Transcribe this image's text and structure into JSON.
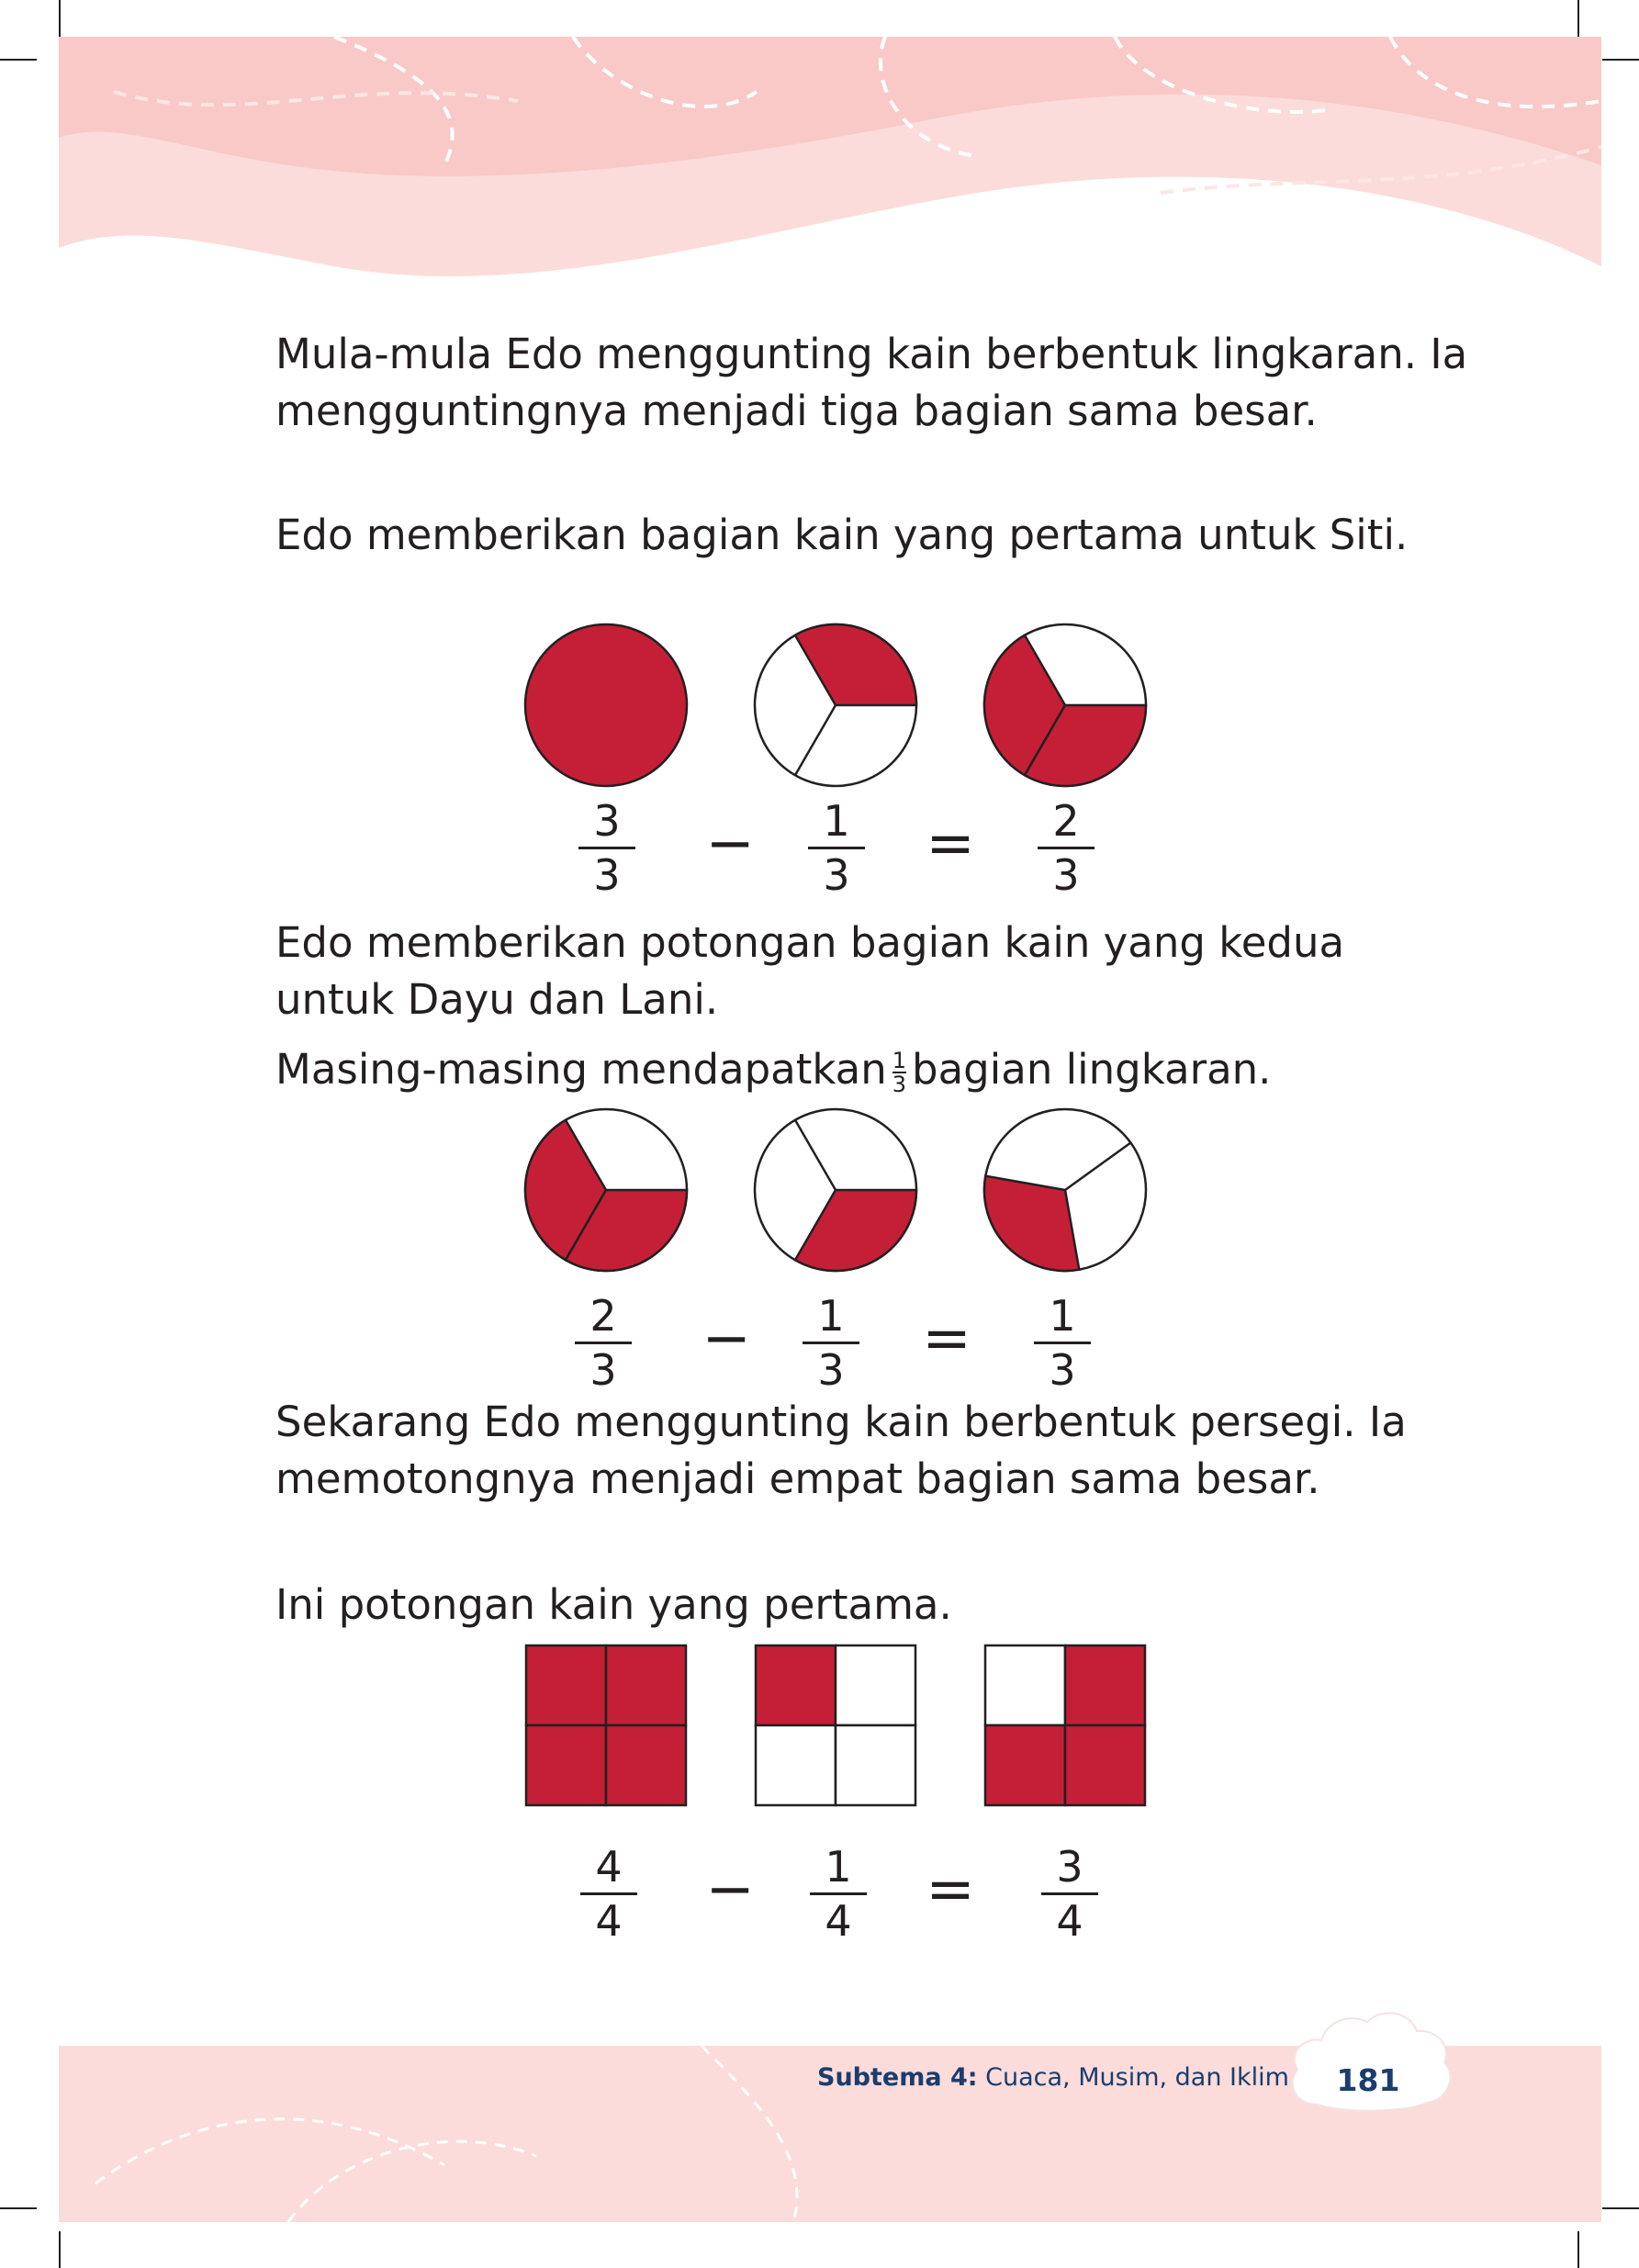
{
  "colors": {
    "fill": "#c51f37",
    "band": "#fbdcdb",
    "ink": "#231f20",
    "footer_ink": "#1a3d6e"
  },
  "paragraphs": [
    "Mula-mula Edo menggunting kain berbentuk lingkaran. Ia mengguntingnya menjadi tiga bagian sama besar.",
    "Edo memberikan bagian kain yang pertama untuk Siti.",
    "Edo memberikan potongan bagian kain yang kedua untuk Dayu dan Lani.",
    "Sekarang Edo menggunting kain berbentuk persegi. Ia memotongnya menjadi empat bagian sama besar.",
    "Ini potongan kain yang pertama."
  ],
  "masing": {
    "before": "Masing-masing mendapatkan",
    "frac_num": "1",
    "frac_den": "3",
    "after": "bagian lingkaran."
  },
  "equations": [
    {
      "a_num": "3",
      "a_den": "3",
      "minus": "−",
      "b_num": "1",
      "b_den": "3",
      "equals": "=",
      "c_num": "2",
      "c_den": "3"
    },
    {
      "a_num": "2",
      "a_den": "3",
      "minus": "−",
      "b_num": "1",
      "b_den": "3",
      "equals": "=",
      "c_num": "1",
      "c_den": "3"
    },
    {
      "a_num": "4",
      "a_den": "4",
      "minus": "−",
      "b_num": "1",
      "b_den": "4",
      "equals": "=",
      "c_num": "3",
      "c_den": "4"
    }
  ],
  "footer": {
    "label": "Subtema 4:",
    "title": "Cuaca, Musim, dan Iklim",
    "page": "181"
  }
}
